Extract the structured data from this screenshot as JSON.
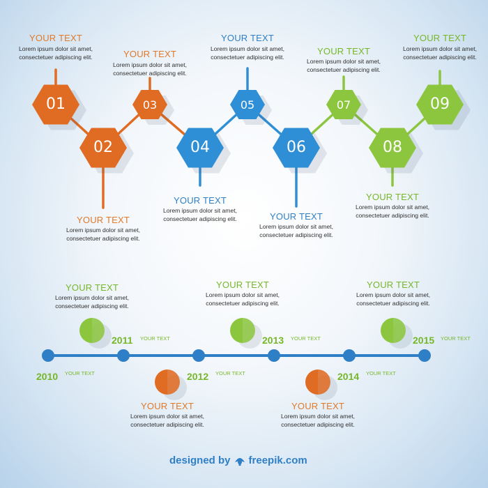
{
  "colors": {
    "orange": "#e06b22",
    "blue": "#2f8fd6",
    "green": "#8cc63f",
    "timeline_blue": "#2f7fc6",
    "title_orange": "#e0792a",
    "title_blue": "#2f7fc6",
    "title_green": "#76b72a"
  },
  "hexagons": [
    {
      "number": "01",
      "color": "orange",
      "title": "YOUR TEXT",
      "body": "Lorem ipsum dolor sit amet, consectetuer adipiscing elit."
    },
    {
      "number": "02",
      "color": "orange",
      "title": "YOUR TEXT",
      "body": "Lorem ipsum dolor sit amet, consectetuer adipiscing elit."
    },
    {
      "number": "03",
      "color": "orange",
      "title": "YOUR TEXT",
      "body": "Lorem ipsum dolor sit amet, consectetuer adipiscing elit."
    },
    {
      "number": "04",
      "color": "blue",
      "title": "YOUR TEXT",
      "body": "Lorem ipsum dolor sit amet, consectetuer adipiscing elit."
    },
    {
      "number": "05",
      "color": "blue",
      "title": "YOUR TEXT",
      "body": "Lorem ipsum dolor sit amet, consectetuer adipiscing elit."
    },
    {
      "number": "06",
      "color": "blue",
      "title": "YOUR TEXT",
      "body": "Lorem ipsum dolor sit amet, consectetuer adipiscing elit."
    },
    {
      "number": "07",
      "color": "green",
      "title": "YOUR TEXT",
      "body": "Lorem ipsum dolor sit amet, consectetuer adipiscing elit."
    },
    {
      "number": "08",
      "color": "green",
      "title": "YOUR TEXT",
      "body": "Lorem ipsum dolor sit amet, consectetuer adipiscing elit."
    },
    {
      "number": "09",
      "color": "green",
      "title": "YOUR TEXT",
      "body": "Lorem ipsum dolor sit amet, consectetuer adipiscing elit."
    }
  ],
  "timeline": [
    {
      "year": "2010",
      "label": "YOUR TEXT"
    },
    {
      "year": "2011",
      "label": "YOUR TEXT",
      "marker": "green",
      "title": "YOUR TEXT",
      "body": "Lorem ipsum dolor sit amet, consectetuer adipiscing elit."
    },
    {
      "year": "2012",
      "label": "YOUR TEXT",
      "marker": "orange",
      "title": "YOUR TEXT",
      "body": "Lorem ipsum dolor sit amet, consectetuer adipiscing elit."
    },
    {
      "year": "2013",
      "label": "YOUR TEXT",
      "marker": "green",
      "title": "YOUR TEXT",
      "body": "Lorem ipsum dolor sit amet, consectetuer adipiscing elit."
    },
    {
      "year": "2014",
      "label": "YOUR TEXT",
      "marker": "orange",
      "title": "YOUR TEXT",
      "body": "Lorem ipsum dolor sit amet, consectetuer adipiscing elit."
    },
    {
      "year": "2015",
      "label": "YOUR TEXT",
      "marker": "green",
      "title": "YOUR TEXT",
      "body": "Lorem ipsum dolor sit amet, consectetuer adipiscing elit."
    }
  ],
  "footer": {
    "designed_by": "designed by",
    "brand": "freepik.com",
    "icon": "freepik-logo-icon"
  }
}
